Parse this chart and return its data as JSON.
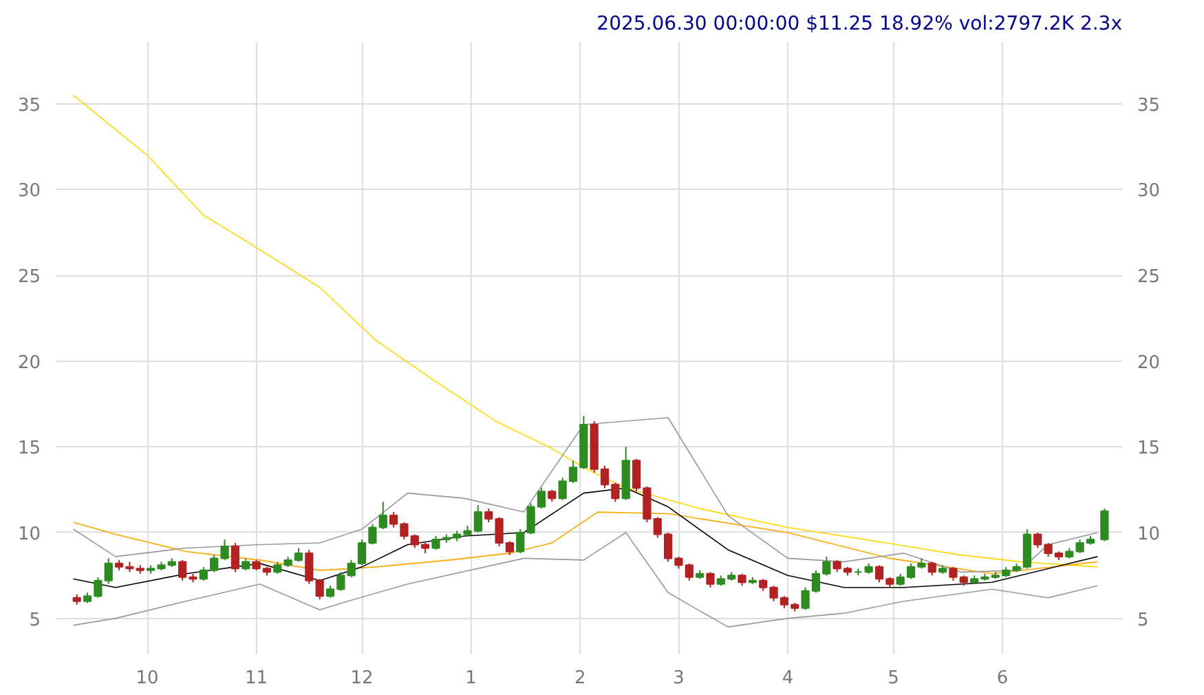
{
  "chart_data": {
    "type": "candlestick",
    "title": "2025.06.30 00:00:00 $11.25 18.92% vol:2797.2K 2.3x",
    "xlim": [
      "2024-09-05",
      "2025-07-05"
    ],
    "xticks": [
      {
        "value": "2024-10-01",
        "label": "10"
      },
      {
        "value": "2024-11-01",
        "label": "11"
      },
      {
        "value": "2024-12-01",
        "label": "12"
      },
      {
        "value": "2025-01-01",
        "label": "1"
      },
      {
        "value": "2025-02-01",
        "label": "2"
      },
      {
        "value": "2025-03-01",
        "label": "3"
      },
      {
        "value": "2025-04-01",
        "label": "4"
      },
      {
        "value": "2025-05-01",
        "label": "5"
      },
      {
        "value": "2025-06-01",
        "label": "6"
      }
    ],
    "ylim": [
      2.9,
      38.6
    ],
    "yticks": [
      5,
      10,
      15,
      20,
      25,
      30,
      35
    ],
    "y2lim": [
      2.9,
      38.6
    ],
    "y2ticks": [
      5,
      10,
      15,
      20,
      25,
      30,
      35
    ],
    "grid": true,
    "x": [
      "2024-09-11",
      "2024-09-14",
      "2024-09-17",
      "2024-09-20",
      "2024-09-23",
      "2024-09-26",
      "2024-09-29",
      "2024-10-02",
      "2024-10-05",
      "2024-10-08",
      "2024-10-11",
      "2024-10-14",
      "2024-10-17",
      "2024-10-20",
      "2024-10-23",
      "2024-10-26",
      "2024-10-29",
      "2024-11-01",
      "2024-11-04",
      "2024-11-07",
      "2024-11-10",
      "2024-11-13",
      "2024-11-16",
      "2024-11-19",
      "2024-11-22",
      "2024-11-25",
      "2024-11-28",
      "2024-12-01",
      "2024-12-04",
      "2024-12-07",
      "2024-12-10",
      "2024-12-13",
      "2024-12-16",
      "2024-12-19",
      "2024-12-22",
      "2024-12-25",
      "2024-12-28",
      "2024-12-31",
      "2025-01-03",
      "2025-01-06",
      "2025-01-09",
      "2025-01-12",
      "2025-01-15",
      "2025-01-18",
      "2025-01-21",
      "2025-01-24",
      "2025-01-27",
      "2025-01-30",
      "2025-02-02",
      "2025-02-05",
      "2025-02-08",
      "2025-02-11",
      "2025-02-14",
      "2025-02-17",
      "2025-02-20",
      "2025-02-23",
      "2025-02-26",
      "2025-03-01",
      "2025-03-04",
      "2025-03-07",
      "2025-03-10",
      "2025-03-13",
      "2025-03-16",
      "2025-03-19",
      "2025-03-22",
      "2025-03-25",
      "2025-03-28",
      "2025-03-31",
      "2025-04-03",
      "2025-04-06",
      "2025-04-09",
      "2025-04-12",
      "2025-04-15",
      "2025-04-18",
      "2025-04-21",
      "2025-04-24",
      "2025-04-27",
      "2025-04-30",
      "2025-05-03",
      "2025-05-06",
      "2025-05-09",
      "2025-05-12",
      "2025-05-15",
      "2025-05-18",
      "2025-05-21",
      "2025-05-24",
      "2025-05-27",
      "2025-05-30",
      "2025-06-02",
      "2025-06-05",
      "2025-06-08",
      "2025-06-11",
      "2025-06-14",
      "2025-06-17",
      "2025-06-20",
      "2025-06-23",
      "2025-06-26",
      "2025-06-30"
    ],
    "ohlc": [
      [
        6.2,
        6.4,
        5.8,
        6.0
      ],
      [
        6.0,
        6.5,
        5.9,
        6.3
      ],
      [
        6.3,
        7.4,
        6.2,
        7.2
      ],
      [
        7.2,
        8.5,
        7.0,
        8.2
      ],
      [
        8.2,
        8.4,
        7.8,
        8.0
      ],
      [
        8.0,
        8.3,
        7.7,
        7.9
      ],
      [
        7.9,
        8.1,
        7.6,
        7.8
      ],
      [
        7.8,
        8.1,
        7.6,
        7.9
      ],
      [
        7.9,
        8.3,
        7.8,
        8.1
      ],
      [
        8.1,
        8.5,
        8.0,
        8.3
      ],
      [
        8.3,
        8.4,
        7.2,
        7.4
      ],
      [
        7.4,
        7.6,
        7.1,
        7.3
      ],
      [
        7.3,
        8.0,
        7.2,
        7.8
      ],
      [
        7.8,
        8.7,
        7.7,
        8.5
      ],
      [
        8.5,
        9.6,
        8.4,
        9.2
      ],
      [
        9.2,
        9.4,
        7.7,
        7.9
      ],
      [
        7.9,
        8.5,
        7.8,
        8.3
      ],
      [
        8.3,
        8.4,
        7.8,
        7.9
      ],
      [
        7.9,
        8.0,
        7.5,
        7.7
      ],
      [
        7.7,
        8.3,
        7.6,
        8.1
      ],
      [
        8.1,
        8.6,
        8.0,
        8.4
      ],
      [
        8.4,
        9.1,
        8.3,
        8.8
      ],
      [
        8.8,
        9.0,
        7.0,
        7.2
      ],
      [
        7.2,
        7.3,
        6.1,
        6.3
      ],
      [
        6.3,
        6.9,
        6.2,
        6.7
      ],
      [
        6.7,
        7.7,
        6.6,
        7.5
      ],
      [
        7.5,
        8.4,
        7.4,
        8.2
      ],
      [
        8.2,
        9.6,
        8.1,
        9.4
      ],
      [
        9.4,
        10.5,
        9.3,
        10.3
      ],
      [
        10.3,
        11.8,
        10.2,
        11.0
      ],
      [
        11.0,
        11.2,
        10.3,
        10.5
      ],
      [
        10.5,
        10.6,
        9.6,
        9.8
      ],
      [
        9.8,
        9.9,
        9.1,
        9.3
      ],
      [
        9.3,
        9.4,
        8.8,
        9.1
      ],
      [
        9.1,
        9.8,
        9.0,
        9.6
      ],
      [
        9.6,
        9.9,
        9.4,
        9.7
      ],
      [
        9.7,
        10.1,
        9.5,
        9.9
      ],
      [
        9.9,
        10.4,
        9.8,
        10.1
      ],
      [
        10.1,
        11.6,
        10.0,
        11.2
      ],
      [
        11.2,
        11.4,
        10.6,
        10.8
      ],
      [
        10.8,
        10.9,
        9.2,
        9.4
      ],
      [
        9.4,
        9.5,
        8.7,
        8.9
      ],
      [
        8.9,
        10.2,
        8.8,
        10.0
      ],
      [
        10.0,
        11.7,
        9.9,
        11.5
      ],
      [
        11.5,
        12.6,
        11.4,
        12.4
      ],
      [
        12.4,
        12.5,
        11.8,
        12.0
      ],
      [
        12.0,
        13.2,
        11.9,
        13.0
      ],
      [
        13.0,
        14.2,
        12.9,
        13.8
      ],
      [
        13.8,
        16.8,
        13.7,
        16.3
      ],
      [
        16.3,
        16.5,
        13.5,
        13.7
      ],
      [
        13.7,
        13.9,
        12.6,
        12.8
      ],
      [
        12.8,
        12.9,
        11.8,
        12.0
      ],
      [
        12.0,
        15.0,
        11.9,
        14.2
      ],
      [
        14.2,
        14.3,
        12.4,
        12.6
      ],
      [
        12.6,
        12.7,
        10.6,
        10.8
      ],
      [
        10.8,
        10.9,
        9.7,
        9.9
      ],
      [
        9.9,
        10.0,
        8.3,
        8.5
      ],
      [
        8.5,
        8.6,
        7.9,
        8.1
      ],
      [
        8.1,
        8.2,
        7.2,
        7.4
      ],
      [
        7.4,
        7.8,
        7.3,
        7.6
      ],
      [
        7.6,
        7.7,
        6.8,
        7.0
      ],
      [
        7.0,
        7.5,
        6.9,
        7.3
      ],
      [
        7.3,
        7.7,
        7.2,
        7.5
      ],
      [
        7.5,
        7.6,
        6.9,
        7.1
      ],
      [
        7.1,
        7.4,
        7.0,
        7.2
      ],
      [
        7.2,
        7.3,
        6.6,
        6.8
      ],
      [
        6.8,
        6.9,
        6.0,
        6.2
      ],
      [
        6.2,
        6.3,
        5.6,
        5.8
      ],
      [
        5.8,
        5.9,
        5.4,
        5.6
      ],
      [
        5.6,
        6.8,
        5.5,
        6.6
      ],
      [
        6.6,
        7.8,
        6.5,
        7.6
      ],
      [
        7.6,
        8.6,
        7.5,
        8.3
      ],
      [
        8.3,
        8.4,
        7.7,
        7.9
      ],
      [
        7.9,
        8.0,
        7.5,
        7.7
      ],
      [
        7.7,
        7.9,
        7.5,
        7.7
      ],
      [
        7.7,
        8.2,
        7.6,
        8.0
      ],
      [
        8.0,
        8.1,
        7.1,
        7.3
      ],
      [
        7.3,
        7.4,
        6.8,
        7.0
      ],
      [
        7.0,
        7.6,
        6.9,
        7.4
      ],
      [
        7.4,
        8.2,
        7.3,
        8.0
      ],
      [
        8.0,
        8.5,
        7.9,
        8.2
      ],
      [
        8.2,
        8.3,
        7.5,
        7.7
      ],
      [
        7.7,
        8.1,
        7.6,
        7.9
      ],
      [
        7.9,
        8.0,
        7.2,
        7.4
      ],
      [
        7.4,
        7.5,
        6.9,
        7.1
      ],
      [
        7.1,
        7.5,
        7.0,
        7.3
      ],
      [
        7.3,
        7.6,
        7.2,
        7.4
      ],
      [
        7.4,
        7.7,
        7.3,
        7.5
      ],
      [
        7.5,
        8.0,
        7.4,
        7.8
      ],
      [
        7.8,
        8.2,
        7.7,
        8.0
      ],
      [
        8.0,
        10.2,
        7.9,
        9.9
      ],
      [
        9.9,
        10.0,
        9.1,
        9.3
      ],
      [
        9.3,
        9.4,
        8.6,
        8.8
      ],
      [
        8.8,
        8.9,
        8.4,
        8.6
      ],
      [
        8.6,
        9.1,
        8.5,
        8.9
      ],
      [
        8.9,
        9.6,
        8.8,
        9.4
      ],
      [
        9.4,
        9.8,
        9.3,
        9.6
      ],
      [
        9.6,
        11.4,
        9.5,
        11.25
      ]
    ],
    "series": [
      {
        "type": "line",
        "color": "#ffd700",
        "x": [
          "2024-09-10",
          "2024-10-01",
          "2024-10-17",
          "2024-10-29",
          "2024-11-19",
          "2024-12-05",
          "2024-12-22",
          "2025-01-08",
          "2025-01-24",
          "2025-02-02",
          "2025-02-14",
          "2025-03-07",
          "2025-04-01",
          "2025-04-26",
          "2025-05-20",
          "2025-06-06",
          "2025-06-28"
        ],
        "values": [
          35.5,
          32.0,
          28.5,
          27.0,
          24.3,
          21.2,
          18.8,
          16.5,
          14.9,
          13.8,
          12.6,
          11.4,
          10.3,
          9.5,
          8.7,
          8.3,
          8.0
        ]
      },
      {
        "type": "line",
        "color": "#ffa500",
        "x": [
          "2024-09-10",
          "2024-09-22",
          "2024-10-12",
          "2024-11-02",
          "2024-11-19",
          "2024-12-05",
          "2024-12-26",
          "2025-01-12",
          "2025-01-24",
          "2025-02-06",
          "2025-02-26",
          "2025-04-01",
          "2025-04-30",
          "2025-05-29",
          "2025-06-28"
        ],
        "values": [
          10.6,
          9.9,
          8.9,
          8.4,
          7.8,
          8.0,
          8.4,
          8.8,
          9.4,
          11.2,
          11.1,
          10.0,
          8.5,
          7.6,
          8.3
        ]
      },
      {
        "type": "line",
        "color": "#000000",
        "x": [
          "2024-09-10",
          "2024-09-22",
          "2024-10-12",
          "2024-11-02",
          "2024-11-19",
          "2024-12-01",
          "2024-12-14",
          "2024-12-30",
          "2025-01-16",
          "2025-02-02",
          "2025-02-14",
          "2025-02-26",
          "2025-03-15",
          "2025-04-01",
          "2025-04-17",
          "2025-05-04",
          "2025-05-29",
          "2025-06-28"
        ],
        "values": [
          7.3,
          6.8,
          7.6,
          8.2,
          7.2,
          8.0,
          9.3,
          9.8,
          10.0,
          12.3,
          12.6,
          11.5,
          9.0,
          7.5,
          6.8,
          6.8,
          7.1,
          8.6
        ]
      },
      {
        "type": "line",
        "color": "#999999",
        "x": [
          "2024-09-10",
          "2024-09-22",
          "2024-10-12",
          "2024-11-02",
          "2024-11-19",
          "2024-12-01",
          "2024-12-14",
          "2024-12-30",
          "2025-01-16",
          "2025-02-02",
          "2025-02-26",
          "2025-03-15",
          "2025-04-01",
          "2025-04-17",
          "2025-05-04",
          "2025-05-20",
          "2025-06-06",
          "2025-06-14",
          "2025-06-28"
        ],
        "values": [
          10.2,
          8.6,
          9.1,
          9.3,
          9.4,
          10.2,
          12.3,
          12.0,
          11.2,
          16.3,
          16.7,
          11.0,
          8.5,
          8.3,
          8.8,
          7.7,
          7.8,
          9.3,
          10.0
        ]
      },
      {
        "type": "line",
        "color": "#999999",
        "x": [
          "2024-09-10",
          "2024-09-22",
          "2024-10-12",
          "2024-11-02",
          "2024-11-19",
          "2024-11-27",
          "2024-12-14",
          "2025-01-16",
          "2025-02-02",
          "2025-02-14",
          "2025-02-26",
          "2025-03-15",
          "2025-04-01",
          "2025-04-17",
          "2025-05-04",
          "2025-05-29",
          "2025-06-14",
          "2025-06-28"
        ],
        "values": [
          4.6,
          5.0,
          6.0,
          7.0,
          5.5,
          6.0,
          7.0,
          8.5,
          8.4,
          10.0,
          6.5,
          4.5,
          5.0,
          5.3,
          6.0,
          6.7,
          6.2,
          6.9
        ]
      }
    ]
  }
}
